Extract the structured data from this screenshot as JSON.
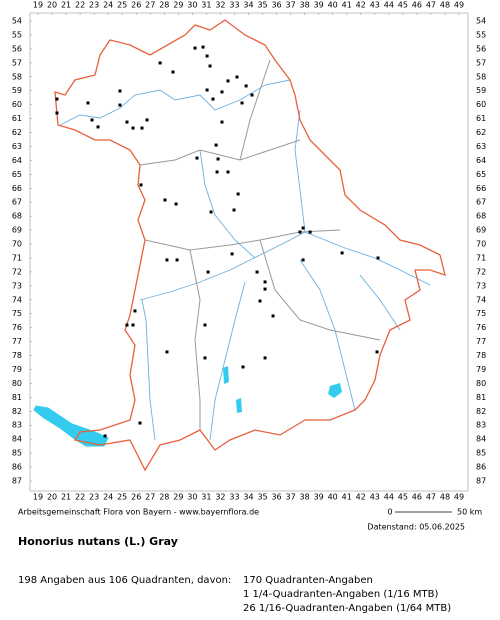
{
  "map": {
    "xticks": [
      19,
      20,
      21,
      22,
      23,
      24,
      25,
      26,
      27,
      28,
      29,
      30,
      31,
      32,
      33,
      34,
      35,
      36,
      37,
      38,
      39,
      40,
      41,
      42,
      43,
      44,
      45,
      46,
      47,
      48,
      49
    ],
    "yticks": [
      54,
      55,
      56,
      57,
      58,
      59,
      60,
      61,
      62,
      63,
      64,
      65,
      66,
      67,
      68,
      69,
      70,
      71,
      72,
      73,
      74,
      75,
      76,
      77,
      78,
      79,
      80,
      81,
      82,
      83,
      84,
      85,
      86,
      87
    ],
    "points": [
      [
        20.35,
        59.6
      ],
      [
        20.35,
        60.6
      ],
      [
        22.56,
        59.88
      ],
      [
        22.85,
        61.1
      ],
      [
        23.28,
        61.6
      ],
      [
        24.84,
        59.02
      ],
      [
        24.84,
        60.03
      ],
      [
        25.34,
        61.25
      ],
      [
        25.77,
        61.68
      ],
      [
        26.41,
        61.68
      ],
      [
        26.77,
        61.1
      ],
      [
        27.7,
        57.01
      ],
      [
        28.62,
        57.66
      ],
      [
        30.19,
        55.94
      ],
      [
        30.76,
        55.87
      ],
      [
        31.05,
        56.51
      ],
      [
        31.26,
        57.23
      ],
      [
        31.05,
        58.95
      ],
      [
        31.47,
        59.6
      ],
      [
        32.11,
        59.09
      ],
      [
        32.54,
        58.3
      ],
      [
        33.18,
        58.02
      ],
      [
        33.83,
        58.66
      ],
      [
        34.25,
        59.31
      ],
      [
        33.54,
        59.88
      ],
      [
        32.11,
        61.25
      ],
      [
        31.69,
        62.9
      ],
      [
        31.83,
        63.9
      ],
      [
        31.76,
        64.83
      ],
      [
        32.54,
        64.83
      ],
      [
        28.05,
        66.84
      ],
      [
        28.84,
        67.13
      ],
      [
        31.33,
        67.7
      ],
      [
        33.26,
        66.41
      ],
      [
        37.89,
        68.85
      ],
      [
        37.67,
        69.14
      ],
      [
        38.39,
        69.14
      ],
      [
        37.89,
        71.14
      ],
      [
        40.67,
        70.64
      ],
      [
        43.23,
        71.0
      ],
      [
        28.19,
        71.14
      ],
      [
        28.91,
        71.14
      ],
      [
        31.12,
        72.01
      ],
      [
        34.61,
        72.01
      ],
      [
        35.18,
        72.72
      ],
      [
        35.18,
        73.23
      ],
      [
        34.82,
        74.09
      ],
      [
        35.75,
        75.16
      ],
      [
        25.91,
        74.8
      ],
      [
        25.34,
        75.81
      ],
      [
        25.77,
        75.81
      ],
      [
        30.9,
        75.81
      ],
      [
        28.19,
        77.74
      ],
      [
        30.9,
        78.17
      ],
      [
        35.18,
        78.17
      ],
      [
        33.61,
        78.82
      ],
      [
        26.27,
        82.84
      ],
      [
        23.78,
        83.77
      ],
      [
        43.16,
        77.74
      ],
      [
        32.97,
        67.56
      ],
      [
        26.34,
        65.76
      ],
      [
        32.83,
        70.71
      ],
      [
        30.33,
        63.83
      ]
    ],
    "point_color": "#000000",
    "credit": "Arbeitsgemeinschaft Flora von Bayern - www.bayernflora.de",
    "scale_start": "0",
    "scale_end": "50 km",
    "date": "Datenstand: 05.06.2025",
    "title": "Honorius nutans (L.) Gray",
    "summary": "198 Angaben aus 106 Quadranten, davon:",
    "breakdown": [
      "170 Quadranten-Angaben",
      "1 1/4-Quadranten-Angaben (1/16 MTB)",
      "26 1/16-Quadranten-Angaben (1/64 MTB)"
    ]
  }
}
